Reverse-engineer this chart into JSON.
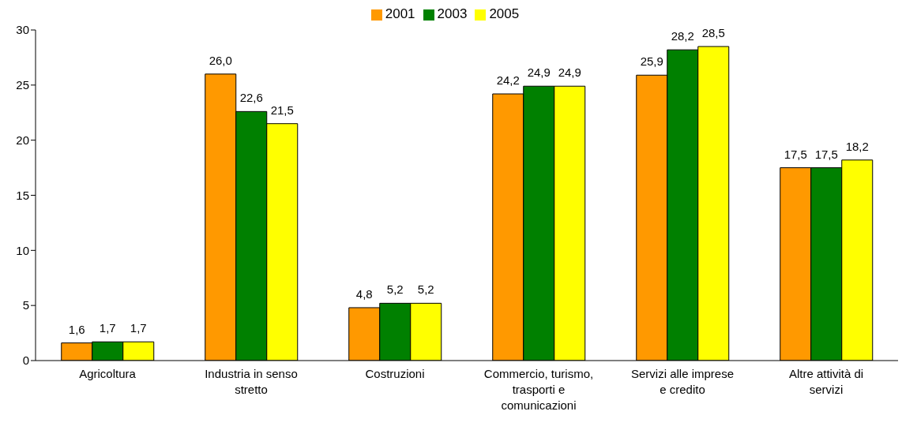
{
  "chart_data": {
    "type": "bar",
    "categories": [
      "Agricoltura",
      "Industria in senso stretto",
      "Costruzioni",
      "Commercio, turismo, trasporti e comunicazioni",
      "Servizi alle imprese e credito",
      "Altre attività di servizi"
    ],
    "series": [
      {
        "name": "2001",
        "color": "#ff9900",
        "values": [
          1.6,
          26.0,
          4.8,
          24.2,
          25.9,
          17.5
        ],
        "value_labels": [
          "1,6",
          "26,0",
          "4,8",
          "24,2",
          "25,9",
          "17,5"
        ]
      },
      {
        "name": "2003",
        "color": "#008000",
        "values": [
          1.7,
          22.6,
          5.2,
          24.9,
          28.2,
          17.5
        ],
        "value_labels": [
          "1,7",
          "22,6",
          "5,2",
          "24,9",
          "28,2",
          "17,5"
        ]
      },
      {
        "name": "2005",
        "color": "#ffff00",
        "values": [
          1.7,
          21.5,
          5.2,
          24.9,
          28.5,
          18.2
        ],
        "value_labels": [
          "1,7",
          "21,5",
          "5,2",
          "24,9",
          "28,5",
          "18,2"
        ]
      }
    ],
    "ylim": [
      0,
      30
    ],
    "yticks": [
      0,
      5,
      10,
      15,
      20,
      25,
      30
    ],
    "grid": false,
    "legend": "top"
  }
}
